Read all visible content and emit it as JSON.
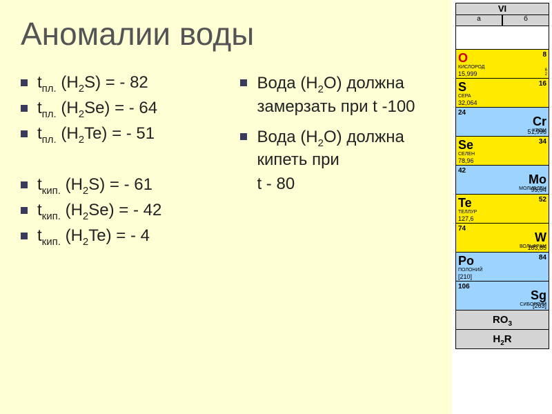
{
  "title": "Аномалии воды",
  "left_list": [
    {
      "pre": "t",
      "sub": "пл.",
      "post": " (H",
      "sub2": "2",
      "post2": "S) = - 82"
    },
    {
      "pre": "t",
      "sub": "пл.",
      "post": " (H",
      "sub2": "2",
      "post2": "Se) = - 64"
    },
    {
      "pre": "t",
      "sub": "пл.",
      "post": " (H",
      "sub2": "2",
      "post2": "Te) = - 51"
    },
    null,
    {
      "pre": "t",
      "sub": "кип.",
      "post": " (H",
      "sub2": "2",
      "post2": "S) = - 61"
    },
    {
      "pre": "t",
      "sub": "кип.",
      "post": " (H",
      "sub2": "2",
      "post2": "Se) = - 42"
    },
    {
      "pre": "t",
      "sub": "кип.",
      "post": " (H",
      "sub2": "2",
      "post2": "Te) = - 4"
    }
  ],
  "right_list": [
    {
      "plain": "Вода (Н",
      "sub": "2",
      "plain2": "О) должна замерзать при t -100"
    },
    {
      "plain": "Вода (Н",
      "sub": "2",
      "plain2": "О) должна кипеть при",
      "line2": "t - 80"
    }
  ],
  "ptable": {
    "group": "VI",
    "ab": [
      "а",
      "б"
    ],
    "cells": [
      {
        "side": "a",
        "bg": "c-yellow",
        "sym": "O",
        "num": "8",
        "name": "КИСЛОРОД",
        "mass": "15,999",
        "sym_color": "#d00000",
        "tiny": "6\n2"
      },
      {
        "side": "a",
        "bg": "c-yellow",
        "sym": "S",
        "num": "16",
        "name": "СЕРА",
        "mass": "32,064",
        "sym_color": "#000",
        "tiny": ""
      },
      {
        "side": "b",
        "bg": "c-blue",
        "sym": "Cr",
        "num": "24",
        "name": "ХРОМ",
        "mass": "51,996",
        "sym_color": "#000",
        "tiny": ""
      },
      {
        "side": "a",
        "bg": "c-yellow",
        "sym": "Se",
        "num": "34",
        "name": "СЕЛЕН",
        "mass": "78,96",
        "sym_color": "#000",
        "tiny": ""
      },
      {
        "side": "b",
        "bg": "c-blue",
        "sym": "Mo",
        "num": "42",
        "name": "МОЛИБДЕН",
        "mass": "95,94",
        "sym_color": "#000",
        "tiny": ""
      },
      {
        "side": "a",
        "bg": "c-yellow",
        "sym": "Te",
        "num": "52",
        "name": "ТЕЛЛУР",
        "mass": "127,6",
        "sym_color": "#000",
        "tiny": ""
      },
      {
        "side": "b",
        "bg": "c-yellow",
        "sym": "W",
        "num": "74",
        "name": "ВОЛЬФРАМ",
        "mass": "183,85",
        "sym_color": "#000",
        "tiny": ""
      },
      {
        "side": "a",
        "bg": "c-blue",
        "sym": "Po",
        "num": "84",
        "name": "ПОЛОНИЙ",
        "mass": "[210]",
        "sym_color": "#000",
        "tiny": ""
      },
      {
        "side": "b",
        "bg": "c-blue",
        "sym": "Sg",
        "num": "106",
        "name": "СИБОРГИЙ",
        "mass": "[263]",
        "sym_color": "#000",
        "tiny": ""
      }
    ],
    "oxide": {
      "f": "RO",
      "sub": "3"
    },
    "hydride": {
      "f": "H",
      "sub": "2",
      "f2": "R"
    }
  }
}
